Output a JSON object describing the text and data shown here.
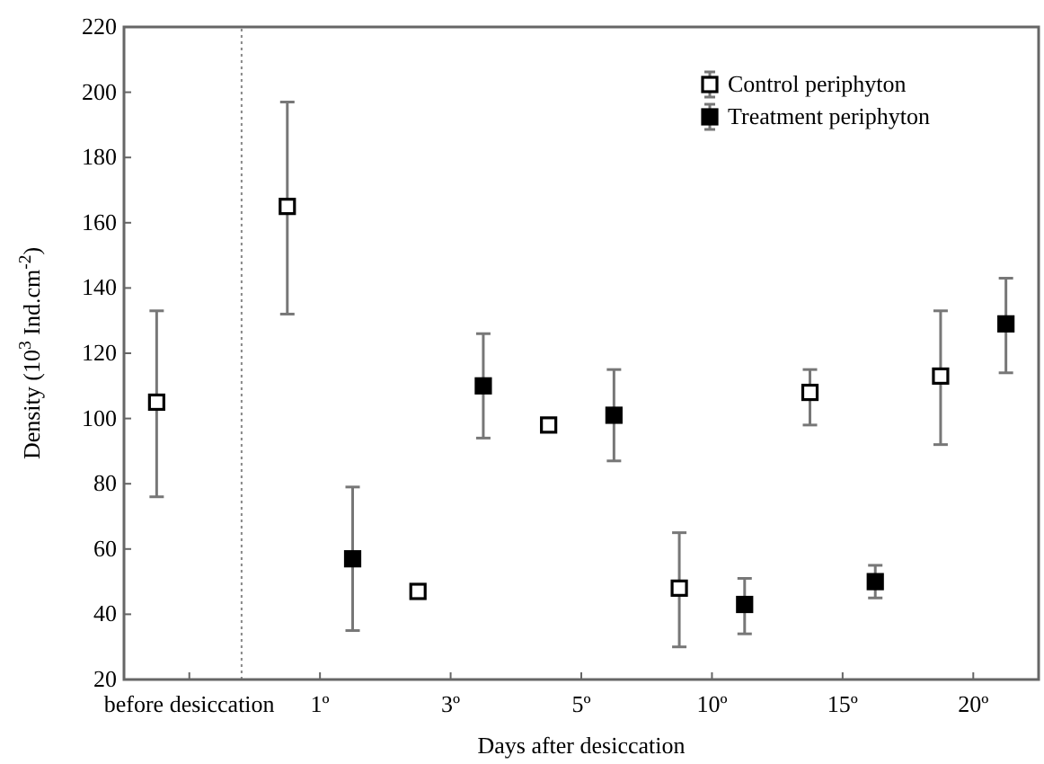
{
  "chart_data": {
    "type": "scatter",
    "xlabel": "Days after desiccation",
    "ylabel": "Density (10$^{3}$ Ind.cm$^{-2}$)",
    "categories": [
      "before desiccation",
      "1º",
      "3º",
      "5º",
      "10º",
      "15º",
      "20º"
    ],
    "ylim": [
      20,
      220
    ],
    "yticks": [
      20,
      40,
      60,
      80,
      100,
      120,
      140,
      160,
      180,
      200,
      220
    ],
    "series": [
      {
        "name": "Control periphyton",
        "color": "#ffffff",
        "values": [
          105,
          165,
          47,
          98,
          48,
          108,
          113
        ],
        "errors": [
          [
            76,
            133
          ],
          [
            132,
            197
          ],
          [
            46,
            48
          ],
          [
            97,
            99
          ],
          [
            30,
            65
          ],
          [
            98,
            115
          ],
          [
            92,
            133
          ]
        ]
      },
      {
        "name": "Treatment periphyton",
        "color": "#000000",
        "values": [
          null,
          57,
          110,
          101,
          43,
          50,
          129
        ],
        "errors": [
          null,
          [
            35,
            79
          ],
          [
            94,
            126
          ],
          [
            87,
            115
          ],
          [
            34,
            51
          ],
          [
            45,
            55
          ],
          [
            114,
            143
          ]
        ]
      }
    ],
    "ref_lines": [
      {
        "axis": "x",
        "value": "before desiccation",
        "color": "#888888",
        "line_style": "dotted"
      }
    ],
    "marker": "square",
    "legend": "top right",
    "grid": false
  }
}
